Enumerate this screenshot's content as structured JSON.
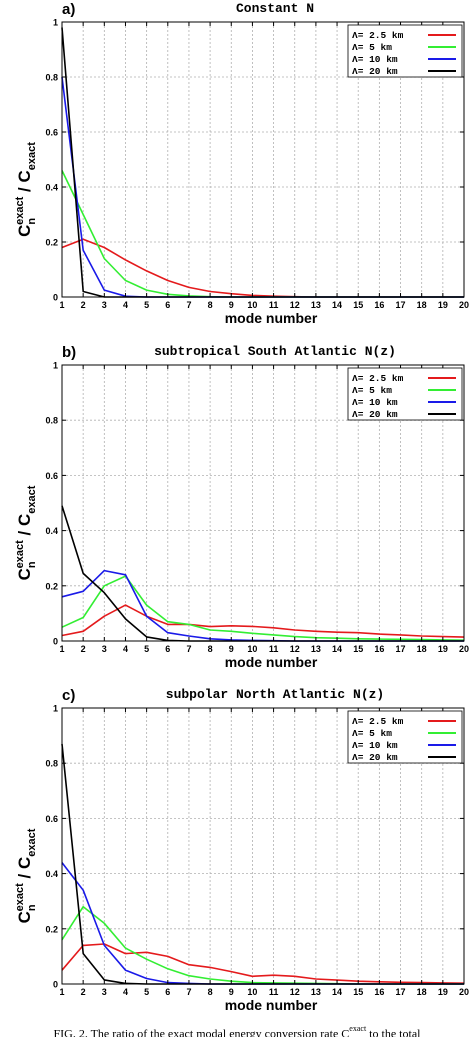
{
  "caption": {
    "text": "FIG. 2. The ratio of the exact modal energy conversion rate C",
    "sup": "exact",
    "tail": " to the total"
  },
  "colors": {
    "red": "#e41a1c",
    "green": "#33ee33",
    "blue": "#1a1ae8",
    "black": "#000000",
    "grid": "#b0b0b0"
  },
  "chart_data": [
    {
      "type": "line",
      "panel_letter": "a)",
      "title": "Constant N",
      "xlabel": "mode number",
      "ylabel": {
        "base": "C",
        "sub": "n",
        "sup": "exact",
        "sep": " / ",
        "base2": "C",
        "sub2": "exact"
      },
      "xlim": [
        1,
        20
      ],
      "ylim": [
        0,
        1
      ],
      "xticks": [
        1,
        2,
        3,
        4,
        5,
        6,
        7,
        8,
        9,
        10,
        11,
        12,
        13,
        14,
        15,
        16,
        17,
        18,
        19,
        20
      ],
      "yticks": [
        0,
        0.2,
        0.4,
        0.6,
        0.8,
        1
      ],
      "ytick_labels": [
        "0",
        "0.2",
        "0.4",
        "0.6",
        "0.8",
        "1"
      ],
      "grid": true,
      "legend_position": "top-right",
      "x": [
        1,
        2,
        3,
        4,
        5,
        6,
        7,
        8,
        9,
        10,
        11,
        12,
        13,
        14,
        15,
        16,
        17,
        18,
        19,
        20
      ],
      "series": [
        {
          "name": "Λ= 2.5 km",
          "color": "#e41a1c",
          "values": [
            0.18,
            0.21,
            0.18,
            0.135,
            0.095,
            0.06,
            0.035,
            0.02,
            0.012,
            0.006,
            0.003,
            0.001,
            0,
            0,
            0,
            0,
            0,
            0,
            0,
            0
          ]
        },
        {
          "name": "Λ= 5 km",
          "color": "#33ee33",
          "values": [
            0.46,
            0.3,
            0.14,
            0.06,
            0.025,
            0.01,
            0.004,
            0.001,
            0,
            0,
            0,
            0,
            0,
            0,
            0,
            0,
            0,
            0,
            0,
            0
          ]
        },
        {
          "name": "Λ= 10 km",
          "color": "#1a1ae8",
          "values": [
            0.8,
            0.17,
            0.025,
            0.003,
            0,
            0,
            0,
            0,
            0,
            0,
            0,
            0,
            0,
            0,
            0,
            0,
            0,
            0,
            0,
            0
          ]
        },
        {
          "name": "Λ= 20 km",
          "color": "#000000",
          "values": [
            0.98,
            0.02,
            0,
            0,
            0,
            0,
            0,
            0,
            0,
            0,
            0,
            0,
            0,
            0,
            0,
            0,
            0,
            0,
            0,
            0
          ]
        }
      ]
    },
    {
      "type": "line",
      "panel_letter": "b)",
      "title": "subtropical South Atlantic N(z)",
      "xlabel": "mode number",
      "ylabel": {
        "base": "C",
        "sub": "n",
        "sup": "exact",
        "sep": " / ",
        "base2": "C",
        "sub2": "exact"
      },
      "xlim": [
        1,
        20
      ],
      "ylim": [
        0,
        1
      ],
      "xticks": [
        1,
        2,
        3,
        4,
        5,
        6,
        7,
        8,
        9,
        10,
        11,
        12,
        13,
        14,
        15,
        16,
        17,
        18,
        19,
        20
      ],
      "yticks": [
        0,
        0.2,
        0.4,
        0.6,
        0.8,
        1
      ],
      "ytick_labels": [
        "0",
        "0.2",
        "0.4",
        "0.6",
        "0.8",
        "1"
      ],
      "grid": true,
      "legend_position": "top-right",
      "x": [
        1,
        2,
        3,
        4,
        5,
        6,
        7,
        8,
        9,
        10,
        11,
        12,
        13,
        14,
        15,
        16,
        17,
        18,
        19,
        20
      ],
      "series": [
        {
          "name": "Λ= 2.5 km",
          "color": "#e41a1c",
          "values": [
            0.02,
            0.035,
            0.09,
            0.13,
            0.09,
            0.06,
            0.06,
            0.052,
            0.055,
            0.053,
            0.048,
            0.04,
            0.035,
            0.032,
            0.03,
            0.025,
            0.022,
            0.018,
            0.016,
            0.014
          ]
        },
        {
          "name": "Λ= 5 km",
          "color": "#33ee33",
          "values": [
            0.05,
            0.085,
            0.2,
            0.235,
            0.13,
            0.07,
            0.06,
            0.04,
            0.035,
            0.028,
            0.022,
            0.016,
            0.012,
            0.01,
            0.008,
            0.007,
            0.006,
            0.005,
            0.004,
            0.003
          ]
        },
        {
          "name": "Λ= 10 km",
          "color": "#1a1ae8",
          "values": [
            0.16,
            0.18,
            0.255,
            0.24,
            0.09,
            0.03,
            0.018,
            0.008,
            0.004,
            0.002,
            0.001,
            0,
            0,
            0,
            0,
            0,
            0,
            0,
            0,
            0
          ]
        },
        {
          "name": "Λ= 20 km",
          "color": "#000000",
          "values": [
            0.49,
            0.245,
            0.175,
            0.08,
            0.015,
            0.002,
            0,
            0,
            0,
            0,
            0,
            0,
            0,
            0,
            0,
            0,
            0,
            0,
            0,
            0
          ]
        }
      ]
    },
    {
      "type": "line",
      "panel_letter": "c)",
      "title": "subpolar North Atlantic  N(z)",
      "xlabel": "mode number",
      "ylabel": {
        "base": "C",
        "sub": "n",
        "sup": "exact",
        "sep": " / ",
        "base2": "C",
        "sub2": "exact"
      },
      "xlim": [
        1,
        20
      ],
      "ylim": [
        0,
        1
      ],
      "xticks": [
        1,
        2,
        3,
        4,
        5,
        6,
        7,
        8,
        9,
        10,
        11,
        12,
        13,
        14,
        15,
        16,
        17,
        18,
        19,
        20
      ],
      "yticks": [
        0,
        0.2,
        0.4,
        0.6,
        0.8,
        1
      ],
      "ytick_labels": [
        "0",
        "0.2",
        "0.4",
        "0.6",
        "0.8",
        "1"
      ],
      "grid": true,
      "legend_position": "top-right",
      "x": [
        1,
        2,
        3,
        4,
        5,
        6,
        7,
        8,
        9,
        10,
        11,
        12,
        13,
        14,
        15,
        16,
        17,
        18,
        19,
        20
      ],
      "series": [
        {
          "name": "Λ= 2.5 km",
          "color": "#e41a1c",
          "values": [
            0.05,
            0.14,
            0.145,
            0.11,
            0.115,
            0.1,
            0.07,
            0.06,
            0.045,
            0.028,
            0.032,
            0.028,
            0.018,
            0.014,
            0.01,
            0.008,
            0.006,
            0.005,
            0.004,
            0.003
          ]
        },
        {
          "name": "Λ= 5 km",
          "color": "#33ee33",
          "values": [
            0.16,
            0.28,
            0.22,
            0.13,
            0.09,
            0.055,
            0.03,
            0.018,
            0.01,
            0.005,
            0.004,
            0.003,
            0.002,
            0.001,
            0,
            0,
            0,
            0,
            0,
            0
          ]
        },
        {
          "name": "Λ= 10 km",
          "color": "#1a1ae8",
          "values": [
            0.44,
            0.34,
            0.14,
            0.05,
            0.02,
            0.005,
            0.002,
            0,
            0,
            0,
            0,
            0,
            0,
            0,
            0,
            0,
            0,
            0,
            0,
            0
          ]
        },
        {
          "name": "Λ= 20 km",
          "color": "#000000",
          "values": [
            0.87,
            0.11,
            0.015,
            0.002,
            0,
            0,
            0,
            0,
            0,
            0,
            0,
            0,
            0,
            0,
            0,
            0,
            0,
            0,
            0,
            0
          ]
        }
      ]
    }
  ]
}
